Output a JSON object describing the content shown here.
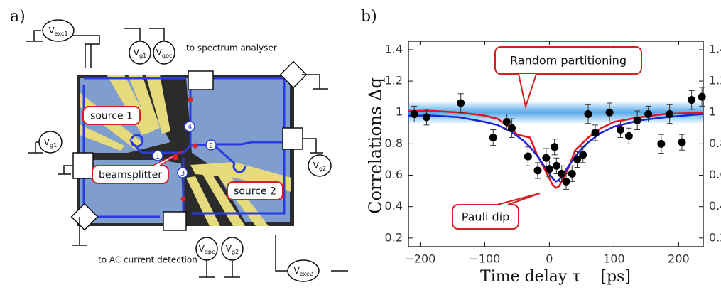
{
  "diagram": {
    "label": "a)",
    "sources": [
      {
        "main": "V",
        "sub": "exc1"
      },
      {
        "main": "V",
        "sub": "g1"
      },
      {
        "main": "V",
        "sub": "qpc"
      },
      {
        "main": "V",
        "sub": "g1"
      },
      {
        "main": "V",
        "sub": "g2"
      },
      {
        "main": "V",
        "sub": "qpc"
      },
      {
        "main": "V",
        "sub": "g2"
      },
      {
        "main": "V",
        "sub": "exc2"
      }
    ],
    "captions": [
      "to spectrum analyser",
      "to AC current detection"
    ],
    "regions": [
      "source 1",
      "beamsplitter",
      "source 2"
    ],
    "paths": [
      "1",
      "2",
      "3",
      "4"
    ]
  },
  "chart_data": {
    "type": "scatter",
    "label": "b)",
    "xlabel": "Time delay τ    [ps]",
    "ylabel": "Correlations Δq",
    "xlim": [
      -218,
      238
    ],
    "ylim": [
      0.145,
      1.454
    ],
    "xticks": [
      {
        "value": -200,
        "label": "−200"
      },
      {
        "value": -100,
        "label": "−100"
      },
      0,
      100,
      200
    ],
    "yticks": [
      0.2,
      0.4,
      0.6,
      0.8,
      1,
      1.2,
      1.4
    ],
    "band": {
      "values": [
        0.93,
        1.07
      ],
      "color": "#3a9be6"
    },
    "points": {
      "color": "#000000",
      "x": [
        -209,
        -190,
        -137,
        -87,
        -66,
        -58,
        -33,
        -18,
        -5,
        0,
        8,
        11,
        19,
        26,
        35,
        43,
        52,
        60,
        71,
        93,
        110,
        123,
        136,
        153,
        173,
        186,
        205,
        220,
        236
      ],
      "values": [
        0.99,
        0.97,
        1.06,
        0.84,
        0.94,
        0.9,
        0.72,
        0.63,
        0.71,
        0.64,
        0.78,
        0.66,
        0.61,
        0.56,
        0.61,
        0.7,
        0.73,
        0.99,
        0.87,
        1.0,
        0.89,
        0.85,
        0.95,
        0.99,
        0.8,
        0.99,
        0.81,
        1.08,
        1.1
      ],
      "errors": [
        0.05,
        0.05,
        0.06,
        0.05,
        0.05,
        0.06,
        0.06,
        0.05,
        0.06,
        0.05,
        0.05,
        0.05,
        0.05,
        0.05,
        0.05,
        0.05,
        0.05,
        0.06,
        0.05,
        0.06,
        0.05,
        0.05,
        0.06,
        0.05,
        0.06,
        0.06,
        0.05,
        0.06,
        0.06
      ]
    },
    "curves": [
      {
        "color": "#e3141c",
        "x": [
          -218,
          -180,
          -140,
          -100,
          -80,
          -60,
          -50,
          -40,
          -30,
          -20,
          -10,
          0,
          5,
          10,
          15,
          20,
          30,
          40,
          50,
          60,
          80,
          100,
          140,
          180,
          238
        ],
        "values": [
          1.01,
          1.01,
          1.0,
          0.98,
          0.96,
          0.9,
          0.86,
          0.85,
          0.84,
          0.74,
          0.66,
          0.58,
          0.54,
          0.52,
          0.53,
          0.57,
          0.65,
          0.76,
          0.8,
          0.84,
          0.9,
          0.94,
          0.97,
          0.99,
          1.0
        ]
      },
      {
        "color": "#1c22d8",
        "x": [
          -218,
          -180,
          -140,
          -100,
          -80,
          -60,
          -50,
          -40,
          -30,
          -20,
          -10,
          0,
          5,
          10,
          15,
          20,
          30,
          40,
          50,
          60,
          80,
          100,
          140,
          180,
          238
        ],
        "values": [
          0.98,
          0.98,
          0.97,
          0.94,
          0.92,
          0.88,
          0.85,
          0.82,
          0.78,
          0.73,
          0.67,
          0.61,
          0.58,
          0.56,
          0.57,
          0.6,
          0.66,
          0.72,
          0.77,
          0.81,
          0.87,
          0.91,
          0.95,
          0.97,
          0.99
        ]
      }
    ],
    "annotations": [
      "Random partitioning",
      "Pauli dip"
    ]
  }
}
